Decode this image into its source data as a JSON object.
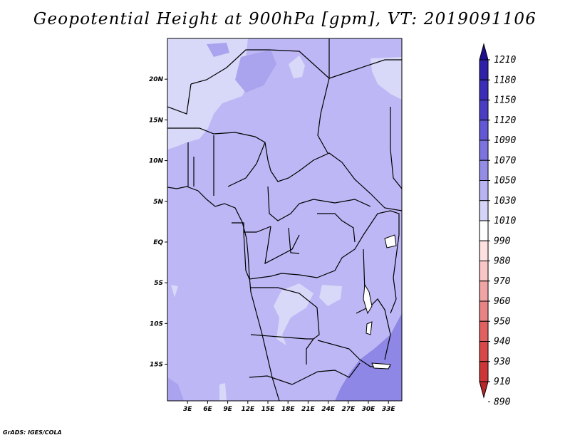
{
  "title": "Geopotential Height at 900hPa [gpm], VT: 2019091106",
  "footer": "GrADS: IGES/COLA",
  "map": {
    "lon_ticks": [
      "3E",
      "6E",
      "9E",
      "12E",
      "15E",
      "18E",
      "21E",
      "24E",
      "27E",
      "30E",
      "33E"
    ],
    "lat_ticks": [
      "20N",
      "15N",
      "10N",
      "5N",
      "EQ",
      "5S",
      "10S",
      "15S"
    ],
    "lon_range": [
      0,
      35
    ],
    "lat_range": [
      -19.5,
      25
    ],
    "base_fill": "#bdb7f5",
    "colors": {
      "light": "#d8d8f8",
      "mid": "#bdb7f5",
      "darker": "#aaa3ee",
      "dark": "#8e87e5",
      "border": "#000000"
    }
  },
  "colorbar": {
    "labels": [
      "1210",
      "1180",
      "1150",
      "1120",
      "1090",
      "1070",
      "1050",
      "1030",
      "1010",
      "990",
      "980",
      "970",
      "960",
      "950",
      "940",
      "930",
      "910",
      "890"
    ],
    "colors": [
      "#1e0e92",
      "#3022a8",
      "#3a2db7",
      "#4a3dc4",
      "#6257d4",
      "#7d73de",
      "#948de6",
      "#b8b3f1",
      "#d4d4f8",
      "#ffffff",
      "#fde0e0",
      "#f8c6c6",
      "#f1a4a4",
      "#e98484",
      "#e16060",
      "#d84848",
      "#cc3636",
      "#b82828"
    ]
  }
}
